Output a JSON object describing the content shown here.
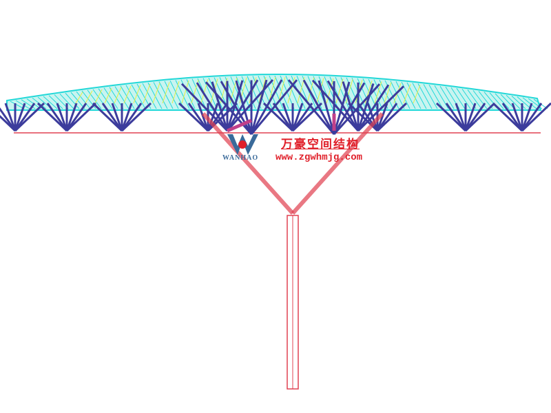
{
  "logo": {
    "chinese_name": "万豪空间结构",
    "english_name": "WANHAO",
    "website": "www.zgwhmjg.com"
  },
  "colors": {
    "roof_grid": "#22d8d8",
    "roof_highlight": "#e8f040",
    "pyramid_members": "#3c3c9c",
    "tree_column": "#e04050",
    "branches": "#c0408a",
    "logo_text": "#e0202a"
  }
}
